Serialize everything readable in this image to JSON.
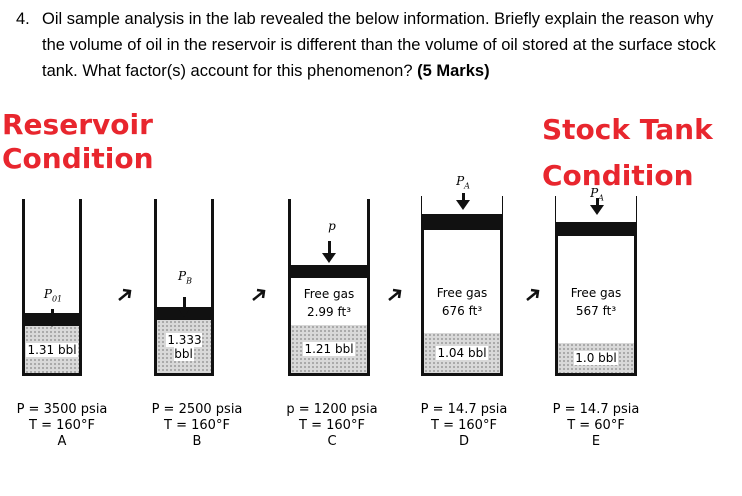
{
  "question": {
    "number": "4.",
    "text": "Oil sample analysis in the lab revealed the below information. Briefly explain the reason why the volume of oil in the reservoir is different than the volume of oil stored at the surface stock tank. What factor(s) account for this phenomenon?",
    "marks": "(5 Marks)"
  },
  "labels": {
    "left": [
      "Reservoir",
      "Condition"
    ],
    "right": [
      "Stock Tank",
      "Condition"
    ],
    "color": "#e8262e"
  },
  "cylinders": [
    {
      "id": "A",
      "pressure_label": "P",
      "pressure_sub": "01",
      "gas": [],
      "oil": "1.31 bbl",
      "cond": [
        "P = 3500 psia",
        "T = 160°F",
        "A"
      ]
    },
    {
      "id": "B",
      "pressure_label": "P",
      "pressure_sub": "B",
      "gas": [],
      "oil": "1.333 bbl",
      "cond": [
        "P = 2500 psia",
        "T = 160°F",
        "B"
      ]
    },
    {
      "id": "C",
      "pressure_label": "p",
      "pressure_sub": "",
      "gas": [
        "Free gas",
        "2.99 ft³"
      ],
      "oil": "1.21 bbl",
      "cond": [
        "p = 1200 psia",
        "T = 160°F",
        "C"
      ]
    },
    {
      "id": "D",
      "pressure_label": "P",
      "pressure_sub": "A",
      "gas": [
        "Free gas",
        "676 ft³"
      ],
      "oil": "1.04 bbl",
      "cond": [
        "P = 14.7 psia",
        "T = 160°F",
        "D"
      ]
    },
    {
      "id": "E",
      "pressure_label": "P",
      "pressure_sub": "A",
      "gas": [
        "Free gas",
        "567 ft³"
      ],
      "oil": "1.0 bbl",
      "cond": [
        "P = 14.7 psia",
        "T = 60°F",
        "E"
      ]
    }
  ]
}
